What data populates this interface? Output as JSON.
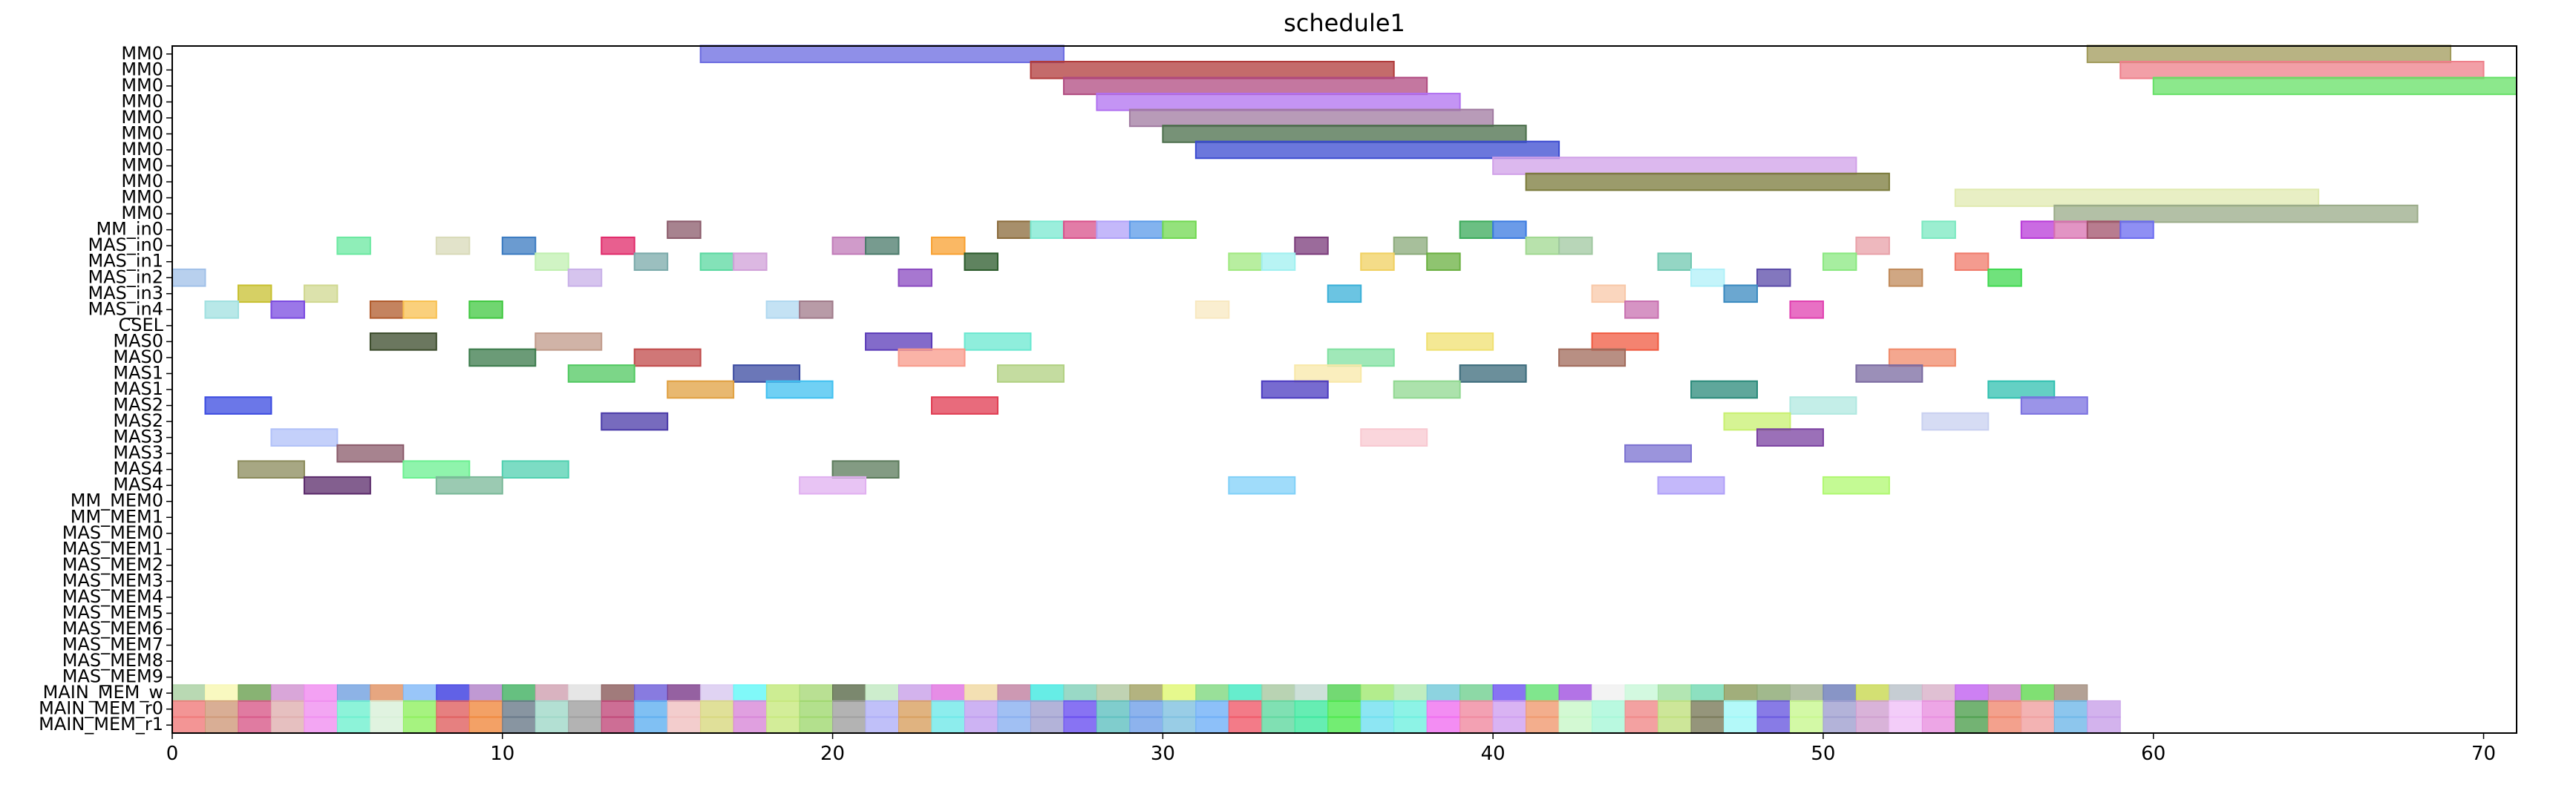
{
  "chart_data": {
    "type": "gantt",
    "title": "schedule1",
    "xlabel": "",
    "ylabel": "",
    "xlim": [
      0,
      71
    ],
    "grid": false,
    "x_ticks": [
      0,
      10,
      20,
      30,
      40,
      50,
      60,
      70
    ],
    "rows": [
      "MM0",
      "MM0",
      "MM0",
      "MM0",
      "MM0",
      "MM0",
      "MM0",
      "MM0",
      "MM0",
      "MM0",
      "MM0",
      "MM_in0",
      "MAS_in0",
      "MAS_in1",
      "MAS_in2",
      "MAS_in3",
      "MAS_in4",
      "CSEL",
      "MAS0",
      "MAS0",
      "MAS1",
      "MAS1",
      "MAS2",
      "MAS2",
      "MAS3",
      "MAS3",
      "MAS4",
      "MAS4",
      "MM_MEM0",
      "MM_MEM1",
      "MAS_MEM0",
      "MAS_MEM1",
      "MAS_MEM2",
      "MAS_MEM3",
      "MAS_MEM4",
      "MAS_MEM5",
      "MAS_MEM6",
      "MAS_MEM7",
      "MAS_MEM8",
      "MAS_MEM9",
      "MAIN_MEM_w",
      "MAIN_MEM_r0",
      "MAIN_MEM_r1"
    ],
    "tasks": [
      {
        "row": 0,
        "start": 16,
        "end": 27,
        "color": "#6a6ae0"
      },
      {
        "row": 0,
        "start": 58,
        "end": 69,
        "color": "#a09a5a"
      },
      {
        "row": 1,
        "start": 26,
        "end": 37,
        "color": "#b03a3a"
      },
      {
        "row": 1,
        "start": 59,
        "end": 70,
        "color": "#ee7f8a"
      },
      {
        "row": 2,
        "start": 27,
        "end": 38,
        "color": "#b04a80"
      },
      {
        "row": 2,
        "start": 60,
        "end": 71,
        "color": "#66e066"
      },
      {
        "row": 3,
        "start": 28,
        "end": 39,
        "color": "#b070f0"
      },
      {
        "row": 4,
        "start": 29,
        "end": 40,
        "color": "#a07aa0"
      },
      {
        "row": 5,
        "start": 30,
        "end": 41,
        "color": "#4a6e4a"
      },
      {
        "row": 6,
        "start": 31,
        "end": 42,
        "color": "#3a4ad0"
      },
      {
        "row": 7,
        "start": 40,
        "end": 51,
        "color": "#d0a0e8"
      },
      {
        "row": 8,
        "start": 41,
        "end": 52,
        "color": "#7a7a3a"
      },
      {
        "row": 9,
        "start": 54,
        "end": 65,
        "color": "#e0eab0"
      },
      {
        "row": 10,
        "start": 57,
        "end": 68,
        "color": "#9aab88"
      },
      {
        "row": 11,
        "start": 15,
        "end": 16,
        "color": "#8a5a6a"
      },
      {
        "row": 11,
        "start": 25,
        "end": 26,
        "color": "#8a6a3a"
      },
      {
        "row": 11,
        "start": 26,
        "end": 27,
        "color": "#7ae8d0"
      },
      {
        "row": 11,
        "start": 27,
        "end": 28,
        "color": "#d8508a"
      },
      {
        "row": 11,
        "start": 28,
        "end": 29,
        "color": "#b0a0f8"
      },
      {
        "row": 11,
        "start": 29,
        "end": 30,
        "color": "#5a9ae8"
      },
      {
        "row": 11,
        "start": 30,
        "end": 31,
        "color": "#70d850"
      },
      {
        "row": 11,
        "start": 39,
        "end": 40,
        "color": "#3aaa5a"
      },
      {
        "row": 11,
        "start": 40,
        "end": 41,
        "color": "#3a7ae0"
      },
      {
        "row": 11,
        "start": 53,
        "end": 54,
        "color": "#7ae8c0"
      },
      {
        "row": 11,
        "start": 56,
        "end": 57,
        "color": "#b83ad8"
      },
      {
        "row": 11,
        "start": 57,
        "end": 58,
        "color": "#d870b0"
      },
      {
        "row": 11,
        "start": 58,
        "end": 59,
        "color": "#a0506a"
      },
      {
        "row": 11,
        "start": 59,
        "end": 60,
        "color": "#6a6af0"
      },
      {
        "row": 12,
        "start": 5,
        "end": 6,
        "color": "#6ae8a0"
      },
      {
        "row": 12,
        "start": 8,
        "end": 9,
        "color": "#d8dab8"
      },
      {
        "row": 12,
        "start": 10,
        "end": 11,
        "color": "#3a7ac0"
      },
      {
        "row": 12,
        "start": 13,
        "end": 14,
        "color": "#e02a6a"
      },
      {
        "row": 12,
        "start": 20,
        "end": 21,
        "color": "#c07ab8"
      },
      {
        "row": 12,
        "start": 21,
        "end": 22,
        "color": "#4a7a6a"
      },
      {
        "row": 12,
        "start": 23,
        "end": 24,
        "color": "#f8a030"
      },
      {
        "row": 12,
        "start": 34,
        "end": 35,
        "color": "#7a3a7a"
      },
      {
        "row": 12,
        "start": 37,
        "end": 38,
        "color": "#8aaa7a"
      },
      {
        "row": 12,
        "start": 41,
        "end": 42,
        "color": "#a0d890"
      },
      {
        "row": 12,
        "start": 42,
        "end": 43,
        "color": "#a0c8a0"
      },
      {
        "row": 12,
        "start": 51,
        "end": 52,
        "color": "#e8a0a8"
      },
      {
        "row": 13,
        "start": 11,
        "end": 12,
        "color": "#c0f0b0"
      },
      {
        "row": 13,
        "start": 14,
        "end": 15,
        "color": "#7aaaaa"
      },
      {
        "row": 13,
        "start": 16,
        "end": 17,
        "color": "#5ad8a0"
      },
      {
        "row": 13,
        "start": 17,
        "end": 18,
        "color": "#d0a0d8"
      },
      {
        "row": 13,
        "start": 24,
        "end": 25,
        "color": "#2a5a2a"
      },
      {
        "row": 13,
        "start": 32,
        "end": 33,
        "color": "#a0e880"
      },
      {
        "row": 13,
        "start": 33,
        "end": 34,
        "color": "#a0f0f0"
      },
      {
        "row": 13,
        "start": 36,
        "end": 37,
        "color": "#f0d060"
      },
      {
        "row": 13,
        "start": 38,
        "end": 39,
        "color": "#6ab040"
      },
      {
        "row": 13,
        "start": 45,
        "end": 46,
        "color": "#70c8b0"
      },
      {
        "row": 13,
        "start": 50,
        "end": 51,
        "color": "#8ae880"
      },
      {
        "row": 13,
        "start": 54,
        "end": 55,
        "color": "#f07a6a"
      },
      {
        "row": 14,
        "start": 0,
        "end": 1,
        "color": "#a0c0e8"
      },
      {
        "row": 14,
        "start": 12,
        "end": 13,
        "color": "#c8b0e8"
      },
      {
        "row": 14,
        "start": 22,
        "end": 23,
        "color": "#8a4ac0"
      },
      {
        "row": 14,
        "start": 46,
        "end": 47,
        "color": "#b0f0f8"
      },
      {
        "row": 14,
        "start": 48,
        "end": 49,
        "color": "#5a4aa8"
      },
      {
        "row": 14,
        "start": 52,
        "end": 53,
        "color": "#c08a5a"
      },
      {
        "row": 14,
        "start": 55,
        "end": 56,
        "color": "#40d850"
      },
      {
        "row": 15,
        "start": 2,
        "end": 3,
        "color": "#c8c030"
      },
      {
        "row": 15,
        "start": 4,
        "end": 5,
        "color": "#d0d890"
      },
      {
        "row": 15,
        "start": 35,
        "end": 36,
        "color": "#3ab0d8"
      },
      {
        "row": 15,
        "start": 43,
        "end": 44,
        "color": "#f8c8a8"
      },
      {
        "row": 15,
        "start": 47,
        "end": 48,
        "color": "#3a8ac0"
      },
      {
        "row": 16,
        "start": 1,
        "end": 2,
        "color": "#a0e0e0"
      },
      {
        "row": 16,
        "start": 3,
        "end": 4,
        "color": "#7a4ae0"
      },
      {
        "row": 16,
        "start": 6,
        "end": 7,
        "color": "#b05a2a"
      },
      {
        "row": 16,
        "start": 7,
        "end": 8,
        "color": "#f8c050"
      },
      {
        "row": 16,
        "start": 9,
        "end": 10,
        "color": "#40c840"
      },
      {
        "row": 16,
        "start": 18,
        "end": 19,
        "color": "#b0d8f0"
      },
      {
        "row": 16,
        "start": 19,
        "end": 20,
        "color": "#a07a8a"
      },
      {
        "row": 16,
        "start": 31,
        "end": 32,
        "color": "#f8e8c0"
      },
      {
        "row": 16,
        "start": 44,
        "end": 45,
        "color": "#c870b0"
      },
      {
        "row": 16,
        "start": 49,
        "end": 50,
        "color": "#e040b0"
      },
      {
        "row": 18,
        "start": 6,
        "end": 8,
        "color": "#3a4a2a"
      },
      {
        "row": 18,
        "start": 11,
        "end": 13,
        "color": "#c09a8a"
      },
      {
        "row": 18,
        "start": 21,
        "end": 23,
        "color": "#5a3ab8"
      },
      {
        "row": 18,
        "start": 24,
        "end": 26,
        "color": "#6ae8d0"
      },
      {
        "row": 18,
        "start": 38,
        "end": 40,
        "color": "#f0e070"
      },
      {
        "row": 18,
        "start": 43,
        "end": 45,
        "color": "#f05a40"
      },
      {
        "row": 19,
        "start": 9,
        "end": 11,
        "color": "#3a7a4a"
      },
      {
        "row": 19,
        "start": 14,
        "end": 16,
        "color": "#c04a4a"
      },
      {
        "row": 19,
        "start": 22,
        "end": 24,
        "color": "#f89a8a"
      },
      {
        "row": 19,
        "start": 35,
        "end": 37,
        "color": "#80e0a0"
      },
      {
        "row": 19,
        "start": 42,
        "end": 44,
        "color": "#a06a5a"
      },
      {
        "row": 19,
        "start": 52,
        "end": 54,
        "color": "#f08a6a"
      },
      {
        "row": 20,
        "start": 12,
        "end": 14,
        "color": "#50c860"
      },
      {
        "row": 20,
        "start": 17,
        "end": 19,
        "color": "#3a4aa0"
      },
      {
        "row": 20,
        "start": 25,
        "end": 27,
        "color": "#b0d080"
      },
      {
        "row": 20,
        "start": 34,
        "end": 36,
        "color": "#f8e8a8"
      },
      {
        "row": 20,
        "start": 39,
        "end": 41,
        "color": "#3a6a7a"
      },
      {
        "row": 20,
        "start": 51,
        "end": 53,
        "color": "#7a6aa0"
      },
      {
        "row": 21,
        "start": 15,
        "end": 17,
        "color": "#e0a040"
      },
      {
        "row": 21,
        "start": 18,
        "end": 20,
        "color": "#40c0f0"
      },
      {
        "row": 21,
        "start": 33,
        "end": 35,
        "color": "#4a3ac0"
      },
      {
        "row": 21,
        "start": 37,
        "end": 39,
        "color": "#90d890"
      },
      {
        "row": 21,
        "start": 46,
        "end": 48,
        "color": "#2a8a7a"
      },
      {
        "row": 21,
        "start": 55,
        "end": 57,
        "color": "#30c0b0"
      },
      {
        "row": 22,
        "start": 1,
        "end": 3,
        "color": "#3a4ae0"
      },
      {
        "row": 22,
        "start": 23,
        "end": 25,
        "color": "#e03a50"
      },
      {
        "row": 22,
        "start": 49,
        "end": 51,
        "color": "#b0e8e0"
      },
      {
        "row": 22,
        "start": 56,
        "end": 58,
        "color": "#7a70e0"
      },
      {
        "row": 23,
        "start": 13,
        "end": 15,
        "color": "#4a3aa8"
      },
      {
        "row": 23,
        "start": 47,
        "end": 49,
        "color": "#c8f070"
      },
      {
        "row": 23,
        "start": 53,
        "end": 55,
        "color": "#c8d0f0"
      },
      {
        "row": 24,
        "start": 3,
        "end": 5,
        "color": "#b0c0f8"
      },
      {
        "row": 24,
        "start": 36,
        "end": 38,
        "color": "#f8c8d0"
      },
      {
        "row": 24,
        "start": 48,
        "end": 50,
        "color": "#7a40a0"
      },
      {
        "row": 25,
        "start": 5,
        "end": 7,
        "color": "#8a5a6a"
      },
      {
        "row": 25,
        "start": 44,
        "end": 46,
        "color": "#7a70d0"
      },
      {
        "row": 26,
        "start": 2,
        "end": 4,
        "color": "#8a8a5a"
      },
      {
        "row": 26,
        "start": 7,
        "end": 9,
        "color": "#6af090"
      },
      {
        "row": 26,
        "start": 10,
        "end": 12,
        "color": "#50d0b0"
      },
      {
        "row": 26,
        "start": 20,
        "end": 22,
        "color": "#5a7a5a"
      },
      {
        "row": 27,
        "start": 4,
        "end": 6,
        "color": "#5a2a6a"
      },
      {
        "row": 27,
        "start": 8,
        "end": 10,
        "color": "#7ab898"
      },
      {
        "row": 27,
        "start": 19,
        "end": 21,
        "color": "#e0b0f0"
      },
      {
        "row": 27,
        "start": 32,
        "end": 34,
        "color": "#80d0f8"
      },
      {
        "row": 27,
        "start": 45,
        "end": 47,
        "color": "#b0a0f8"
      },
      {
        "row": 27,
        "start": 50,
        "end": 52,
        "color": "#b0f870"
      }
    ],
    "mem_w_colors": [
      "#a8d0a0",
      "#f8f8b0",
      "#6aa050",
      "#d090d0",
      "#f08af0",
      "#70a0e0",
      "#e09060",
      "#80b8f8",
      "#3a3ae0",
      "#b080c8",
      "#40b060",
      "#d0a0b0",
      "#e0e0e0",
      "#8a5a5a",
      "#6a5ad8",
      "#7a3a8a",
      "#d8c8f0",
      "#60f8f8",
      "#c0e878",
      "#a8d878",
      "#5a6a4a",
      "#c0e8c0",
      "#c8a0e8",
      "#e070e0",
      "#f0d8a0",
      "#c080a0",
      "#40e8e0",
      "#80d0b8",
      "#b0c8a0",
      "#a0a060",
      "#e0f870",
      "#80d880",
      "#40e8c0",
      "#a8c8a0",
      "#c0d8d0",
      "#50d050",
      "#a0e870",
      "#b0e8b0",
      "#70c8d8",
      "#70d090",
      "#6a50f0",
      "#60e070",
      "#a050e0",
      "#f0f0f0",
      "#c8f8d8",
      "#a0e0a0",
      "#70d8b0",
      "#8a9a5a",
      "#8aa870",
      "#a0b090",
      "#6a7ab8",
      "#c8d850",
      "#b8c0c8",
      "#d8b0c8",
      "#c060f0",
      "#c880c8",
      "#60d850",
      "#a08a7a"
    ],
    "mem_r0_colors": [
      "#f07a7a",
      "#d09a7a",
      "#d85a8a",
      "#e0b0b0",
      "#f090f0",
      "#70f0d0",
      "#d8f0d8",
      "#90f060",
      "#e06060",
      "#f08a40",
      "#6a7a8a",
      "#a0d8c8",
      "#a0a0a0",
      "#c04a7a",
      "#60b0f0",
      "#f0c0c0",
      "#d8d880",
      "#d888d8",
      "#c8e880",
      "#a0d870",
      "#a0a0a0",
      "#b0b0f8",
      "#d8a060",
      "#70e8e8",
      "#c0a0f0",
      "#8ab0f0",
      "#a0a0d0",
      "#6a50f0",
      "#60c0c0",
      "#70a0e8",
      "#80c0e0",
      "#70b0f8",
      "#f05a6a",
      "#60d8a0",
      "#40e8a0",
      "#50e850",
      "#70e0f0",
      "#70f0e0",
      "#f070f0",
      "#f08aa0",
      "#d0a0f0",
      "#f09a70",
      "#c8f8c8",
      "#a8f8d8",
      "#f08a8a",
      "#c0e080",
      "#7a7a5a",
      "#a0f8f8",
      "#6a5ae0",
      "#c8f890",
      "#a0a0d0",
      "#d0a0d0",
      "#f0c0f8",
      "#e890e0",
      "#50a050",
      "#f08a70",
      "#f0a0a0",
      "#70b8e8",
      "#c8a0e8"
    ],
    "mem_r1_colors": [
      "#f07a7a",
      "#d09a7a",
      "#d85a8a",
      "#e0b0b0",
      "#f090f0",
      "#70f0d0",
      "#d8f0d8",
      "#90f060",
      "#e06060",
      "#f08a40",
      "#6a7a8a",
      "#a0d8c8",
      "#a0a0a0",
      "#c04a7a",
      "#60b0f0",
      "#f0c0c0",
      "#d8d880",
      "#d888d8",
      "#c8e880",
      "#a0d870",
      "#a0a0a0",
      "#b0b0f8",
      "#d8a060",
      "#70e8e8",
      "#c0a0f0",
      "#8ab0f0",
      "#a0a0d0",
      "#6a50f0",
      "#60c0c0",
      "#70a0e8",
      "#80c0e0",
      "#70b0f8",
      "#f05a6a",
      "#60d8a0",
      "#40e8a0",
      "#50e850",
      "#70e0f0",
      "#70f0e0",
      "#f070f0",
      "#f08aa0",
      "#d0a0f0",
      "#f09a70",
      "#c8f8c8",
      "#a8f8d8",
      "#f08a8a",
      "#c0e080",
      "#7a7a5a",
      "#a0f8f8",
      "#6a5ae0",
      "#c8f890",
      "#a0a0d0",
      "#d0a0d0",
      "#f0c0f8",
      "#e890e0",
      "#50a050",
      "#f08a70",
      "#f0a0a0",
      "#70b8e8",
      "#c8a0e8"
    ]
  }
}
